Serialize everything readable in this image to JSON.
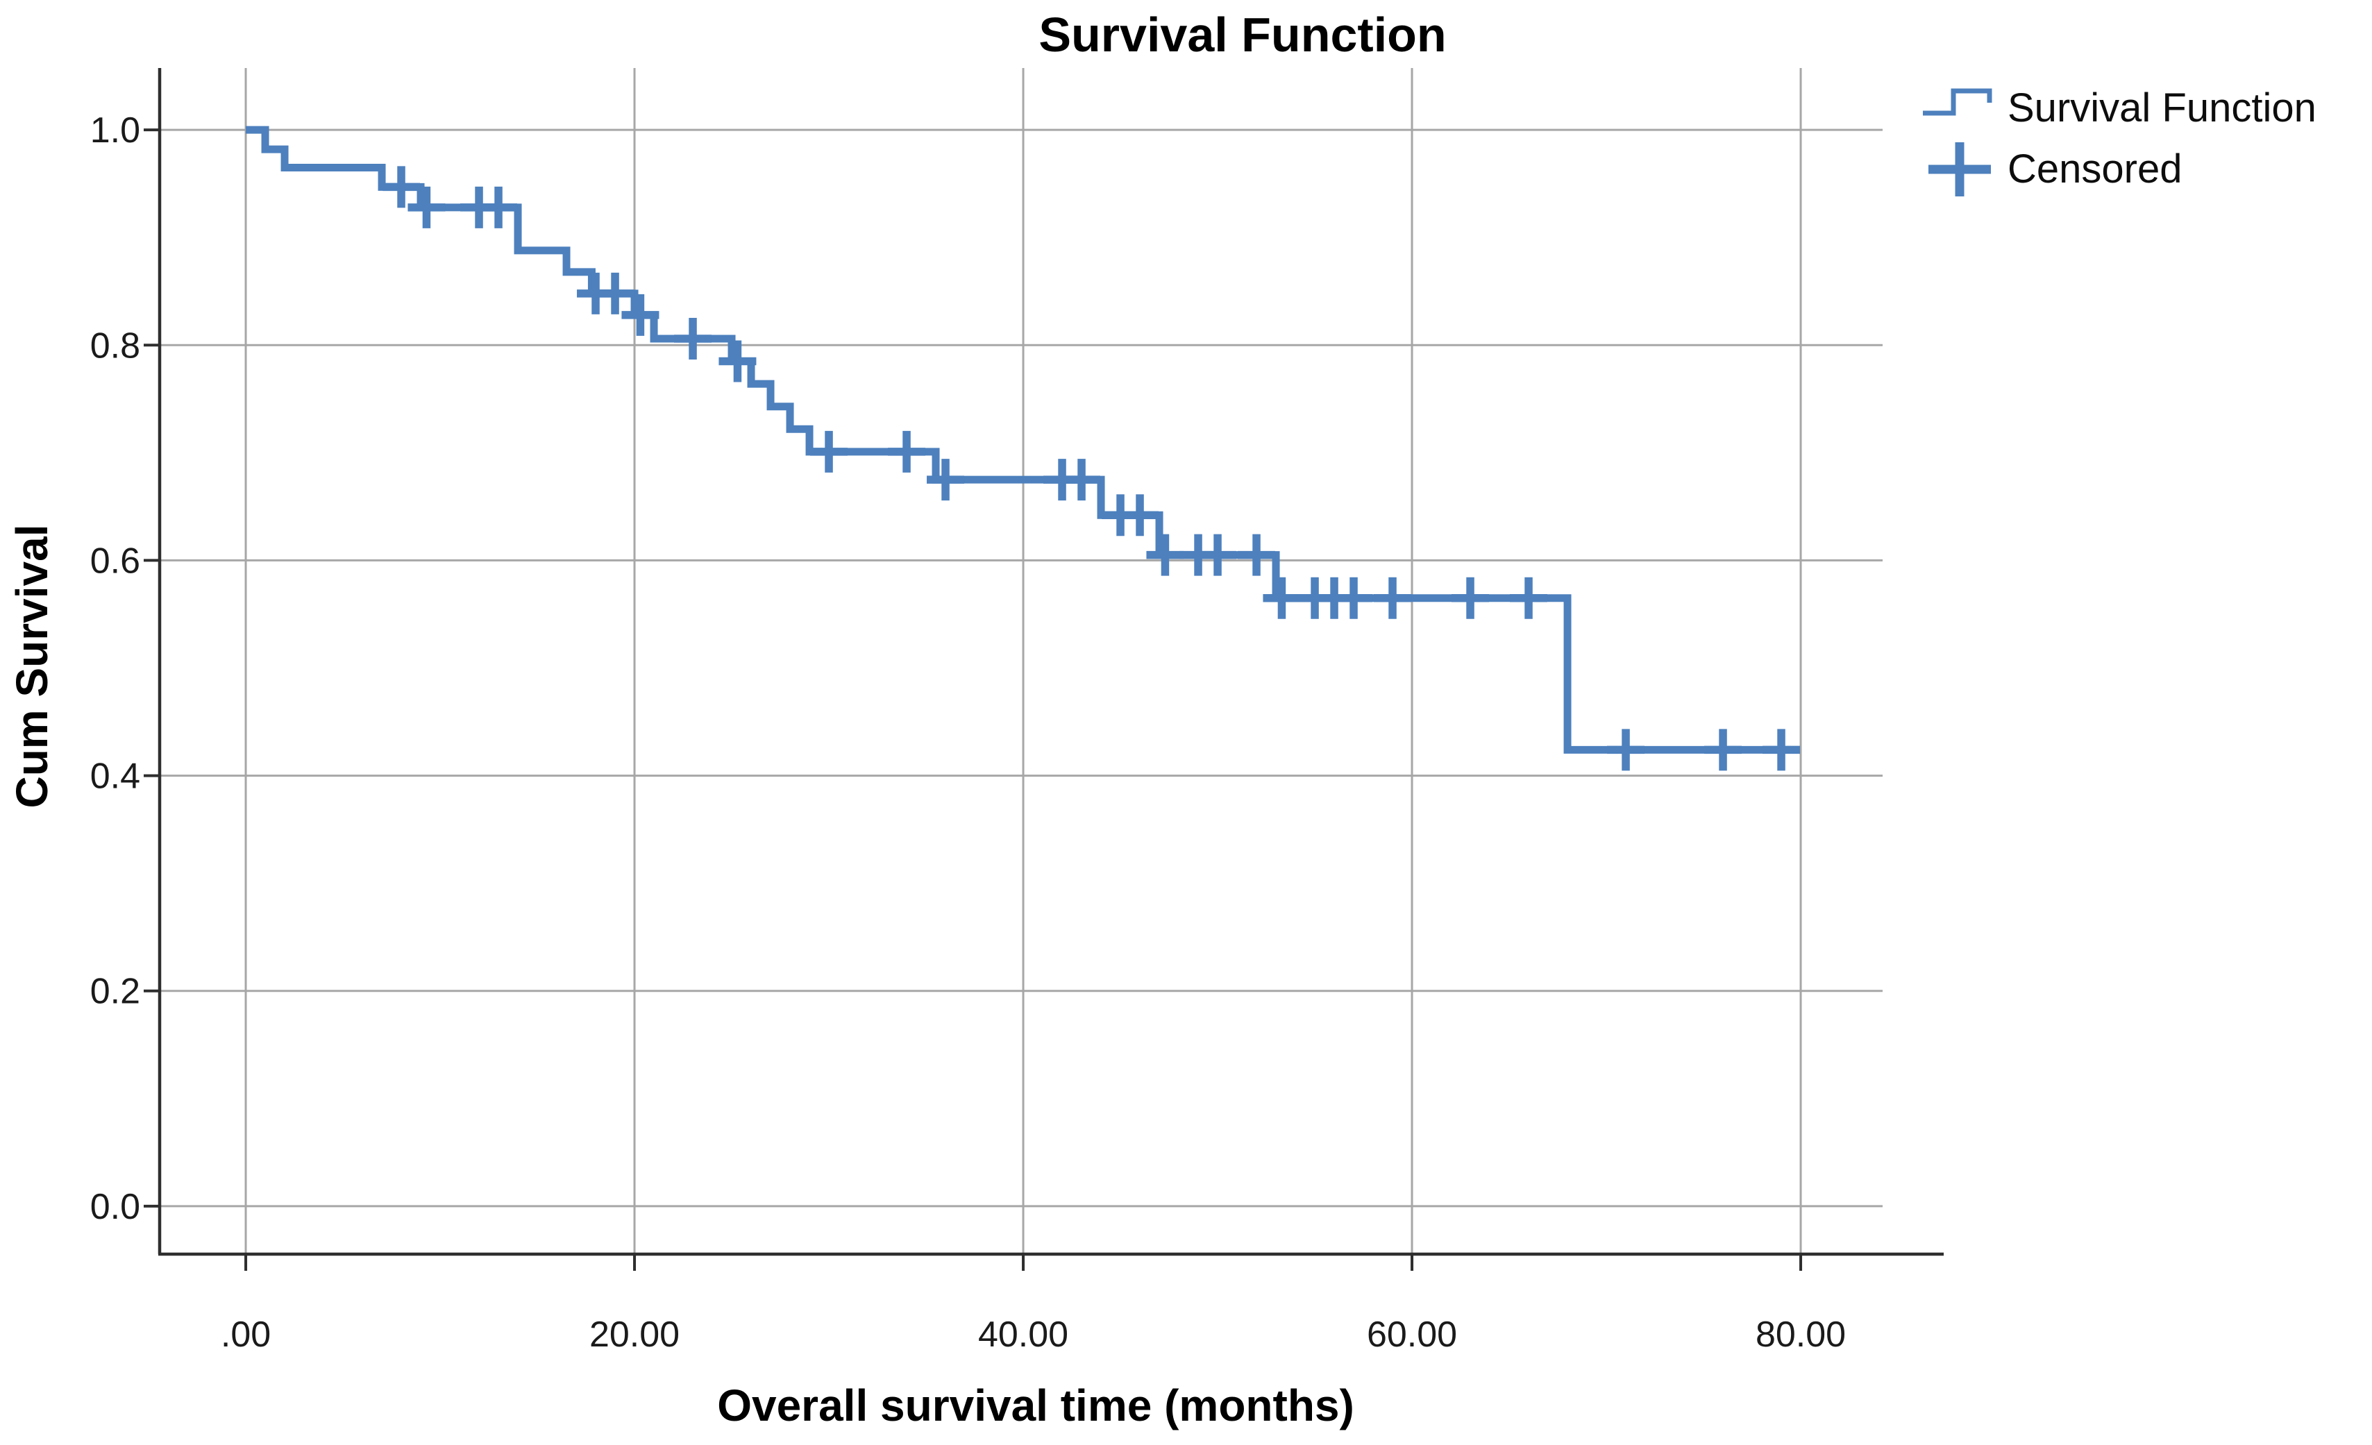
{
  "figure": {
    "title": "Survival Function",
    "x_axis_label": "Overall survival time (months)",
    "y_axis_label": "Cum Survival"
  },
  "legend": {
    "position": "top-right",
    "items": [
      {
        "label": "Survival Function",
        "symbol": "step-line-icon"
      },
      {
        "label": "Censored",
        "symbol": "plus-icon"
      }
    ]
  },
  "colors": {
    "series_blue": "#4d80bd",
    "gridline_grey": "#a7a7a7",
    "axis_dark": "#2e2e2e",
    "text_dark": "#1a1a1a",
    "background": "#ffffff"
  },
  "chart_data": {
    "type": "line",
    "subtype": "kaplan-meier-step",
    "title": "Survival Function",
    "xlabel": "Overall survival time (months)",
    "ylabel": "Cum Survival",
    "grid": true,
    "legend_position": "top-right",
    "xlim": [
      -4.43,
      87.07
    ],
    "ylim": [
      -0.0446,
      1.0575
    ],
    "x_ticks": {
      "labels": [
        ".00",
        "20.00",
        "40.00",
        "60.00",
        "80.00"
      ],
      "values": [
        0,
        20,
        40,
        60,
        80
      ]
    },
    "y_ticks": {
      "labels": [
        "0.0",
        "0.2",
        "0.4",
        "0.6",
        "0.8",
        "1.0"
      ],
      "values": [
        0,
        0.2,
        0.4,
        0.6,
        0.8,
        1.0
      ]
    },
    "series": [
      {
        "name": "Survival Function",
        "type": "step",
        "color": "#4d80bd",
        "end_time": 79.5,
        "points": [
          [
            0,
            1.0
          ],
          [
            1,
            0.982
          ],
          [
            2,
            0.965
          ],
          [
            7,
            0.947
          ],
          [
            9,
            0.928
          ],
          [
            14,
            0.888
          ],
          [
            16.5,
            0.868
          ],
          [
            17.8,
            0.848
          ],
          [
            20,
            0.828
          ],
          [
            21,
            0.806
          ],
          [
            25,
            0.785
          ],
          [
            26,
            0.764
          ],
          [
            27,
            0.743
          ],
          [
            28,
            0.722
          ],
          [
            29,
            0.701
          ],
          [
            35.5,
            0.675
          ],
          [
            44,
            0.642
          ],
          [
            47,
            0.605
          ],
          [
            53,
            0.565
          ],
          [
            68,
            0.424
          ]
        ]
      }
    ],
    "censored": {
      "name": "Censored",
      "color": "#4d80bd",
      "points": [
        [
          8,
          0.947
        ],
        [
          9.3,
          0.928
        ],
        [
          12,
          0.928
        ],
        [
          13,
          0.928
        ],
        [
          18,
          0.848
        ],
        [
          19,
          0.848
        ],
        [
          20.3,
          0.828
        ],
        [
          23,
          0.806
        ],
        [
          25.3,
          0.785
        ],
        [
          30,
          0.701
        ],
        [
          34,
          0.701
        ],
        [
          36,
          0.675
        ],
        [
          42,
          0.675
        ],
        [
          43,
          0.675
        ],
        [
          45,
          0.642
        ],
        [
          46,
          0.642
        ],
        [
          47.3,
          0.605
        ],
        [
          49,
          0.605
        ],
        [
          50,
          0.605
        ],
        [
          52,
          0.605
        ],
        [
          53.3,
          0.565
        ],
        [
          55,
          0.565
        ],
        [
          56,
          0.565
        ],
        [
          57,
          0.565
        ],
        [
          59,
          0.565
        ],
        [
          63,
          0.565
        ],
        [
          66,
          0.565
        ],
        [
          71,
          0.424
        ],
        [
          76,
          0.424
        ],
        [
          79,
          0.424
        ]
      ]
    }
  }
}
